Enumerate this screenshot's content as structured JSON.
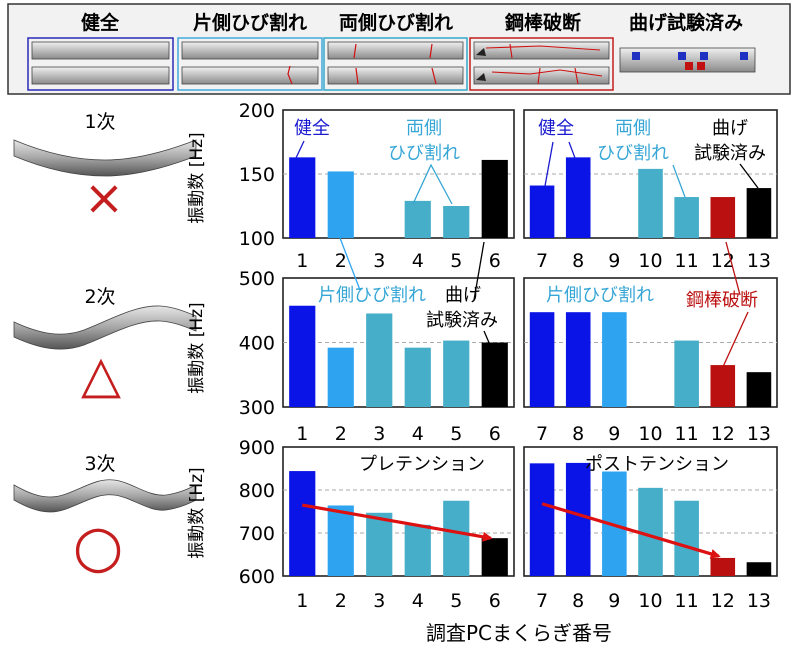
{
  "legend": {
    "items": [
      {
        "label": "健全",
        "color": "#2b2bb8"
      },
      {
        "label": "片側ひび割れ",
        "color": "#3fa9df"
      },
      {
        "label": "両側ひび割れ",
        "color": "#35a8c8"
      },
      {
        "label": "鋼棒破断",
        "color": "#c41e1e"
      },
      {
        "label": "曲げ試験済み",
        "color": "#111111"
      }
    ]
  },
  "modes": [
    {
      "label": "1次",
      "symbol": "×",
      "symbol_name": "cross-icon"
    },
    {
      "label": "2次",
      "symbol": "△",
      "symbol_name": "triangle-icon"
    },
    {
      "label": "3次",
      "symbol": "○",
      "symbol_name": "circle-icon"
    }
  ],
  "ylabel": "振動数 [Hz]",
  "xlabel": "調査PCまくらぎ番号",
  "colors": {
    "healthy": "#0a14e6",
    "one_side": "#2ea4f0",
    "both_sides": "#46aec8",
    "rod_broken": "#bb1010",
    "bend_tested": "#000000",
    "red_line": "#dd1111",
    "annotation_blue": "#1a1ad0",
    "annotation_cyan": "#36a6d6"
  },
  "chart_data": [
    {
      "id": "r1l",
      "type": "bar",
      "categories": [
        "1",
        "2",
        "3",
        "4",
        "5",
        "6"
      ],
      "values": [
        163,
        152,
        null,
        129,
        125,
        161
      ],
      "classes": [
        "healthy",
        "one_side",
        "both_sides",
        "both_sides",
        "both_sides",
        "bend_tested"
      ],
      "ylim": [
        100,
        200
      ],
      "yticks": [
        100,
        150,
        200
      ],
      "grid_y": [
        150
      ],
      "annotations": [
        "健全",
        "両側",
        "ひび割れ"
      ]
    },
    {
      "id": "r1r",
      "type": "bar",
      "categories": [
        "7",
        "8",
        "9",
        "10",
        "11",
        "12",
        "13"
      ],
      "values": [
        141,
        163,
        null,
        154,
        132,
        132,
        139
      ],
      "classes": [
        "healthy",
        "healthy",
        "one_side",
        "both_sides",
        "both_sides",
        "rod_broken",
        "bend_tested"
      ],
      "ylim": [
        100,
        200
      ],
      "yticks": [],
      "grid_y": [
        150
      ],
      "annotations": [
        "健全",
        "両側",
        "ひび割れ",
        "曲げ",
        "試験済み"
      ]
    },
    {
      "id": "r2l",
      "type": "bar",
      "categories": [
        "1",
        "2",
        "3",
        "4",
        "5",
        "6"
      ],
      "values": [
        457,
        392,
        445,
        392,
        403,
        400
      ],
      "classes": [
        "healthy",
        "one_side",
        "both_sides",
        "both_sides",
        "both_sides",
        "bend_tested"
      ],
      "ylim": [
        300,
        500
      ],
      "yticks": [
        300,
        400,
        500
      ],
      "grid_y": [
        400
      ],
      "annotations": [
        "片側ひび割れ",
        "曲げ",
        "試験済み"
      ]
    },
    {
      "id": "r2r",
      "type": "bar",
      "categories": [
        "7",
        "8",
        "9",
        "10",
        "11",
        "12",
        "13"
      ],
      "values": [
        447,
        447,
        447,
        null,
        403,
        365,
        354
      ],
      "classes": [
        "healthy",
        "healthy",
        "one_side",
        "both_sides",
        "both_sides",
        "rod_broken",
        "bend_tested"
      ],
      "ylim": [
        300,
        500
      ],
      "yticks": [],
      "grid_y": [
        400
      ],
      "annotations": [
        "片側ひび割れ",
        "鋼棒破断"
      ]
    },
    {
      "id": "r3l",
      "type": "bar",
      "categories": [
        "1",
        "2",
        "3",
        "4",
        "5",
        "6"
      ],
      "values": [
        844,
        764,
        747,
        719,
        775,
        688
      ],
      "classes": [
        "healthy",
        "one_side",
        "both_sides",
        "both_sides",
        "both_sides",
        "bend_tested"
      ],
      "ylim": [
        600,
        900
      ],
      "yticks": [
        600,
        700,
        800,
        900
      ],
      "grid_y": [
        700,
        800
      ],
      "annotations": [
        "プレテンション"
      ],
      "trend": {
        "from": [
          1,
          765
        ],
        "to": [
          6,
          688
        ]
      }
    },
    {
      "id": "r3r",
      "type": "bar",
      "categories": [
        "7",
        "8",
        "9",
        "10",
        "11",
        "12",
        "13"
      ],
      "values": [
        862,
        863,
        843,
        805,
        775,
        642,
        632
      ],
      "classes": [
        "healthy",
        "healthy",
        "one_side",
        "both_sides",
        "both_sides",
        "rod_broken",
        "bend_tested"
      ],
      "ylim": [
        600,
        900
      ],
      "yticks": [],
      "grid_y": [
        700,
        800
      ],
      "annotations": [
        "ポストテンション"
      ],
      "trend": {
        "from": [
          7,
          768
        ],
        "to": [
          12,
          646
        ]
      }
    }
  ]
}
